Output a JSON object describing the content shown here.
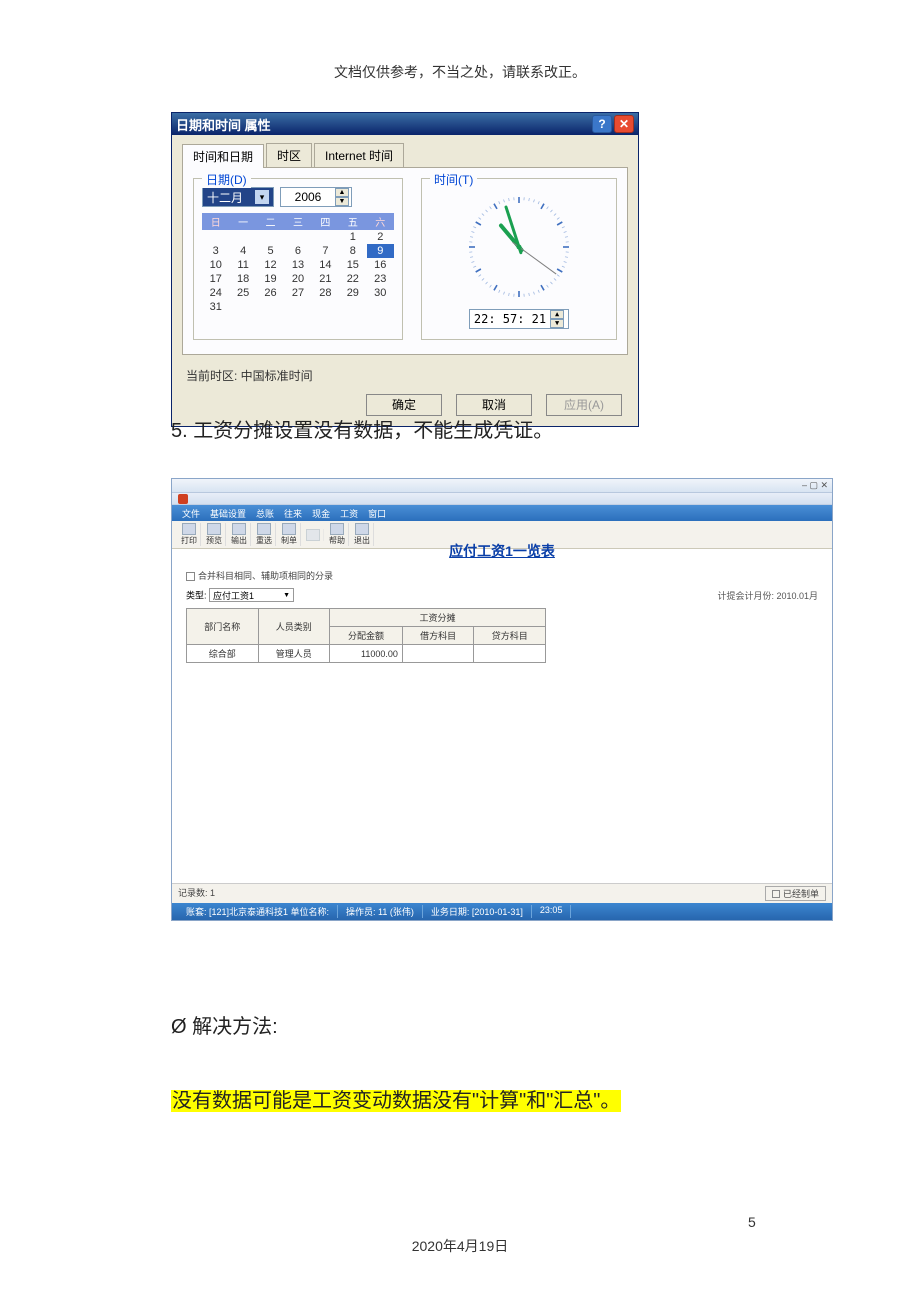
{
  "header_note": "文档仅供参考，不当之处，请联系改正。",
  "datetime_dialog": {
    "title": "日期和时间 属性",
    "tabs": [
      "时间和日期",
      "时区",
      "Internet 时间"
    ],
    "date_legend": "日期(D)",
    "time_legend": "时间(T)",
    "month": "十二月",
    "year": "2006",
    "dow": [
      "日",
      "一",
      "二",
      "三",
      "四",
      "五",
      "六"
    ],
    "weeks": [
      [
        "",
        "",
        "",
        "",
        "",
        "1",
        "2"
      ],
      [
        "3",
        "4",
        "5",
        "6",
        "7",
        "8",
        "9"
      ],
      [
        "10",
        "11",
        "12",
        "13",
        "14",
        "15",
        "16"
      ],
      [
        "17",
        "18",
        "19",
        "20",
        "21",
        "22",
        "23"
      ],
      [
        "24",
        "25",
        "26",
        "27",
        "28",
        "29",
        "30"
      ],
      [
        "31",
        "",
        "",
        "",
        "",
        "",
        ""
      ]
    ],
    "selected_day": "9",
    "time_value": "22: 57: 21",
    "timezone_line": "当前时区:  中国标准时间",
    "btn_ok": "确定",
    "btn_cancel": "取消",
    "btn_apply": "应用(A)",
    "clock": {
      "hour_deg": 320,
      "min_deg": 342,
      "sec_deg": 126
    }
  },
  "para5": "5. 工资分摊设置没有数据，不能生成凭证。",
  "app": {
    "win_controls": "– ▢ ✕",
    "menus": [
      "文件",
      "基础设置",
      "总账",
      "往来",
      "现金",
      "工资",
      "窗口"
    ],
    "tools": [
      {
        "label": "打印",
        "dis": false
      },
      {
        "label": "预览",
        "dis": false
      },
      {
        "label": "输出",
        "dis": false
      },
      {
        "label": "重选",
        "dis": false
      },
      {
        "label": "制单",
        "dis": false
      },
      {
        "label": "",
        "dis": true
      },
      {
        "label": "帮助",
        "dis": false
      },
      {
        "label": "退出",
        "dis": false
      }
    ],
    "checkbox_label": "合并科目相同、辅助项相同的分录",
    "type_label": "类型:",
    "type_value": "应付工资1",
    "title_center": "应付工资1一览表",
    "period_label": "计提会计月份: 2010.01月",
    "columns_top": [
      "部门名称",
      "人员类别",
      "工资分摊"
    ],
    "columns_sub": [
      "分配金额",
      "借方科目",
      "贷方科目"
    ],
    "rows": [
      {
        "dept": "综合部",
        "cat": "管理人员",
        "amt": "11000.00",
        "dr": "",
        "cr": ""
      }
    ],
    "record_count": "记录数:  1",
    "done_btn": "已经制单",
    "status_cells": [
      "账套: [121]北京泰通科技1  单位名称:",
      "操作员: 11 (张伟)",
      "业务日期: [2010-01-31]",
      "23:05"
    ]
  },
  "solution_label": "Ø 解决方法:",
  "solution_hl": "没有数据可能是工资变动数据没有\"计算\"和\"汇总\"。",
  "footer_date": "2020年4月19日",
  "page_num": "5"
}
